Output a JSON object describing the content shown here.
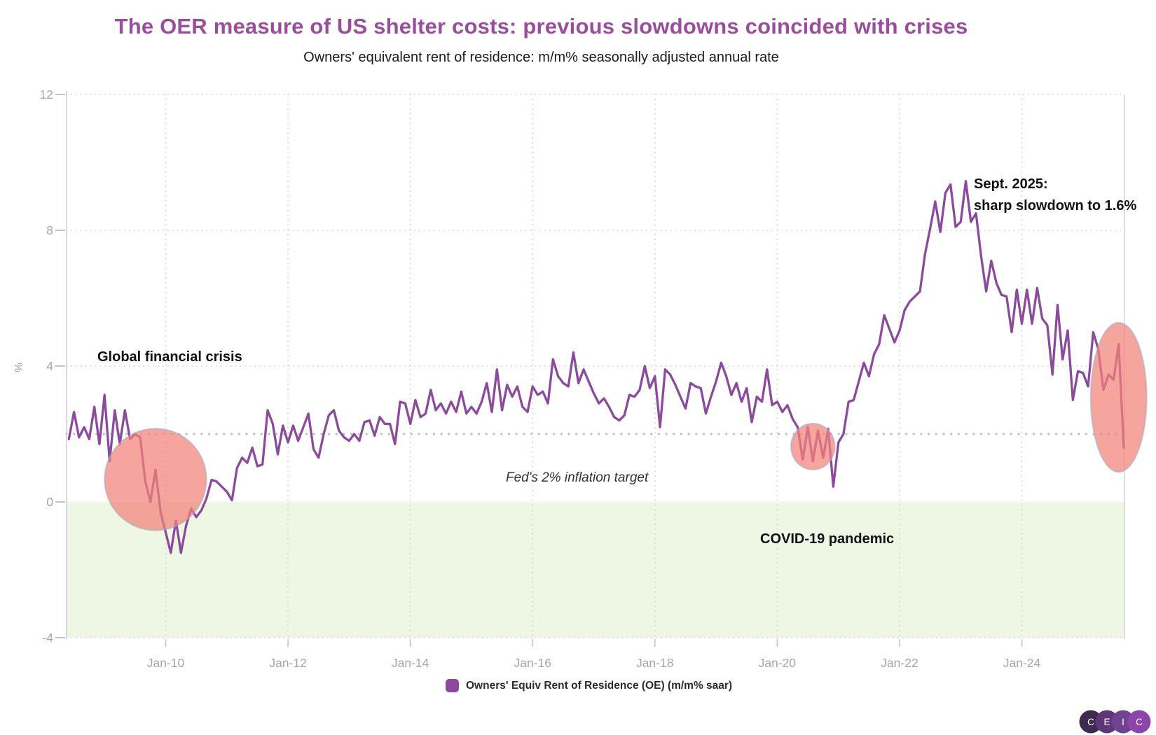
{
  "header": {
    "title": "The OER measure of US shelter costs: previous slowdowns coincided with crises",
    "subtitle": "Owners' equivalent rent of residence: m/m% seasonally adjusted annual rate"
  },
  "chart_data": {
    "type": "line",
    "title": "The OER measure of US shelter costs: previous slowdowns coincided with crises",
    "subtitle": "Owners' equivalent rent of residence: m/m% seasonally adjusted annual rate",
    "ylabel": "%",
    "ylim": [
      -4,
      12
    ],
    "y_ticks": [
      12,
      8,
      4,
      0,
      -4
    ],
    "x_tick_labels": [
      "Jan-10",
      "Jan-12",
      "Jan-14",
      "Jan-16",
      "Jan-18",
      "Jan-20",
      "Jan-22",
      "Jan-24"
    ],
    "grid": true,
    "legend_position": "bottom-center",
    "target_line": {
      "value": 2,
      "label": "Fed's 2% inflation target",
      "color": "#c2c2ca"
    },
    "shaded_region": {
      "from": 0,
      "to": -4,
      "color": "#eef6e4"
    },
    "series": [
      {
        "name": "Owners' Equiv Rent of Residence (OE) (m/m% saar)",
        "color": "#8b4a9b",
        "frequency": "monthly",
        "start": "2008-06",
        "end": "2025-09",
        "values": [
          1.85,
          2.65,
          1.9,
          2.2,
          1.85,
          2.8,
          1.7,
          3.15,
          1.2,
          2.7,
          1.7,
          2.7,
          1.85,
          2.0,
          1.9,
          0.6,
          0.0,
          0.95,
          -0.3,
          -0.9,
          -1.5,
          -0.55,
          -1.5,
          -0.7,
          -0.2,
          -0.45,
          -0.25,
          0.1,
          0.65,
          0.6,
          0.45,
          0.3,
          0.05,
          1.0,
          1.3,
          1.15,
          1.6,
          1.05,
          1.1,
          2.7,
          2.3,
          1.4,
          2.25,
          1.75,
          2.25,
          1.8,
          2.2,
          2.6,
          1.55,
          1.3,
          2.0,
          2.55,
          2.7,
          2.1,
          1.9,
          1.8,
          2.0,
          1.8,
          2.35,
          2.4,
          1.95,
          2.5,
          2.3,
          2.3,
          1.7,
          2.95,
          2.9,
          2.3,
          3.0,
          2.5,
          2.6,
          3.3,
          2.7,
          2.9,
          2.6,
          2.95,
          2.65,
          3.25,
          2.6,
          2.8,
          2.6,
          2.95,
          3.5,
          2.65,
          3.9,
          2.7,
          3.45,
          3.1,
          3.4,
          2.8,
          2.65,
          3.4,
          3.15,
          3.25,
          2.9,
          4.2,
          3.7,
          3.5,
          3.4,
          4.4,
          3.5,
          3.9,
          3.55,
          3.2,
          2.9,
          3.05,
          2.8,
          2.5,
          2.4,
          2.55,
          3.15,
          3.1,
          3.3,
          4.0,
          3.35,
          3.7,
          2.2,
          3.9,
          3.75,
          3.45,
          3.1,
          2.75,
          3.5,
          3.4,
          3.35,
          2.6,
          3.1,
          3.55,
          4.1,
          3.7,
          3.15,
          3.5,
          2.95,
          3.35,
          2.35,
          3.1,
          2.95,
          3.9,
          2.85,
          2.95,
          2.65,
          2.85,
          2.45,
          2.2,
          1.25,
          2.2,
          1.2,
          2.1,
          1.3,
          2.15,
          0.45,
          1.75,
          2.0,
          2.95,
          3.0,
          3.55,
          4.1,
          3.7,
          4.35,
          4.65,
          5.5,
          5.1,
          4.7,
          5.05,
          5.65,
          5.9,
          6.05,
          6.2,
          7.3,
          8.05,
          8.85,
          7.95,
          9.1,
          9.35,
          8.1,
          8.25,
          9.45,
          8.25,
          8.5,
          7.25,
          6.2,
          7.1,
          6.45,
          6.1,
          6.05,
          5.0,
          6.25,
          5.25,
          6.25,
          5.25,
          6.3,
          5.4,
          5.2,
          3.75,
          5.8,
          4.2,
          5.05,
          3.0,
          3.85,
          3.8,
          3.4,
          5.0,
          4.5,
          3.3,
          3.75,
          3.6,
          4.65,
          1.6
        ]
      }
    ],
    "highlight_ellipses": [
      {
        "label": "Global financial crisis",
        "center_date": "2009-11",
        "center_value": 0.66,
        "rx_months": 10.0,
        "ry_value": 1.5
      },
      {
        "label": "COVID-19 pandemic",
        "center_date": "2020-08",
        "center_value": 1.63,
        "rx_months": 4.3,
        "ry_value": 0.68
      },
      {
        "label": "Sept. 2025 slowdown",
        "center_date": "2025-08",
        "center_value": 3.08,
        "ry_value": 2.2,
        "rx_months": 5.5
      }
    ],
    "highlight_fill": "rgba(243,130,120,0.72)",
    "highlight_border": "rgba(165,175,195,0.6)"
  },
  "axes": {
    "y_axis_label": "%",
    "y_tick_labels": [
      "12",
      "8",
      "4",
      "0",
      "-4"
    ],
    "x_tick_labels": [
      "Jan-10",
      "Jan-12",
      "Jan-14",
      "Jan-16",
      "Jan-18",
      "Jan-20",
      "Jan-22",
      "Jan-24"
    ]
  },
  "annotations": {
    "gfc": "Global financial crisis",
    "covid": "COVID-19 pandemic",
    "sept_line1": "Sept. 2025:",
    "sept_line2": "sharp slowdown to 1.6%",
    "fed_target": "Fed's 2% inflation target"
  },
  "legend": {
    "label": "Owners' Equiv Rent of Residence (OE) (m/m% saar)",
    "swatch_color": "#8b4a9b"
  },
  "logo": {
    "letters": [
      "C",
      "E",
      "I",
      "C"
    ],
    "colors": [
      "#3d2b4e",
      "#5e3679",
      "#71428f",
      "#8d44ab"
    ]
  }
}
